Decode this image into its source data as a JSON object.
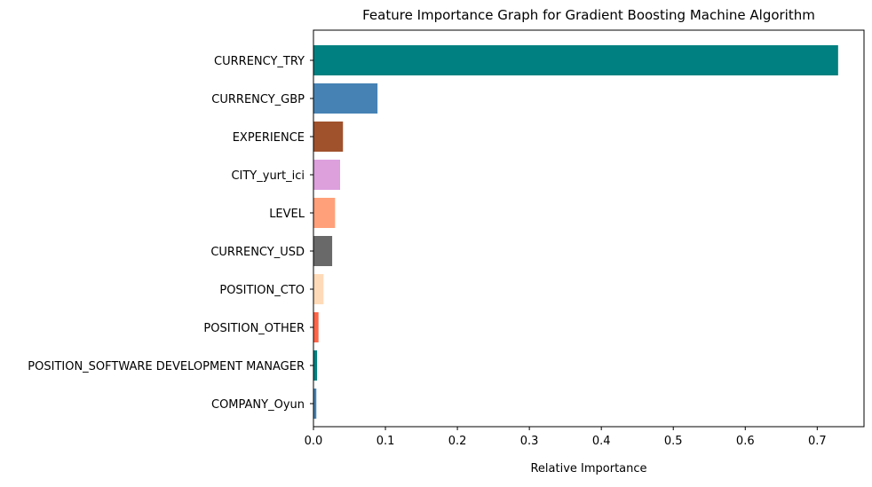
{
  "chart_data": {
    "type": "bar",
    "orientation": "horizontal",
    "title": "Feature Importance Graph for Gradient Boosting Machine Algorithm",
    "xlabel": "Relative Importance",
    "ylabel": "",
    "xlim": [
      0,
      0.765
    ],
    "xticks": [
      0.0,
      0.1,
      0.2,
      0.3,
      0.4,
      0.5,
      0.6,
      0.7
    ],
    "xtick_labels": [
      "0.0",
      "0.1",
      "0.2",
      "0.3",
      "0.4",
      "0.5",
      "0.6",
      "0.7"
    ],
    "grid": false,
    "categories": [
      "CURRENCY_TRY",
      "CURRENCY_GBP",
      "EXPERIENCE",
      "CITY_yurt_ici",
      "LEVEL",
      "CURRENCY_USD",
      "POSITION_CTO",
      "POSITION_OTHER",
      "POSITION_SOFTWARE DEVELOPMENT MANAGER",
      "COMPANY_Oyun"
    ],
    "values": [
      0.729,
      0.089,
      0.041,
      0.037,
      0.03,
      0.026,
      0.014,
      0.007,
      0.005,
      0.004
    ],
    "colors": [
      "#008080",
      "#4682b4",
      "#a0522d",
      "#dda0dd",
      "#ffa07a",
      "#696969",
      "#ffdab9",
      "#ff6347",
      "#008080",
      "#4682b4"
    ]
  }
}
